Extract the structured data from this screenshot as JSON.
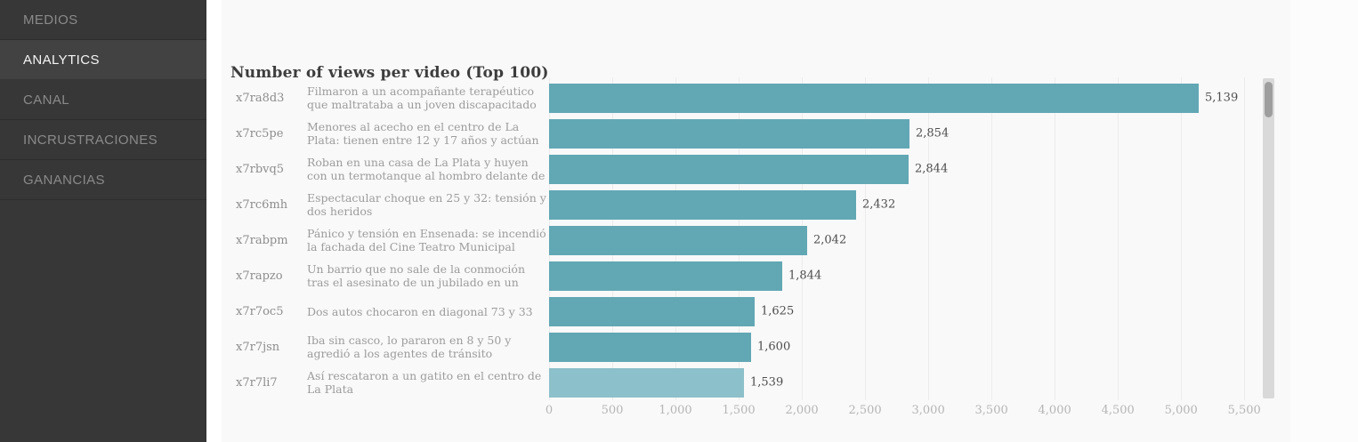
{
  "sidebar": {
    "items": [
      {
        "label": "MEDIOS",
        "active": false
      },
      {
        "label": "ANALYTICS",
        "active": true
      },
      {
        "label": "CANAL",
        "active": false
      },
      {
        "label": "INCRUSTRACIONES",
        "active": false
      },
      {
        "label": "GANANCIAS",
        "active": false
      }
    ]
  },
  "main": {
    "title": "Number of views per video (Top 100)"
  },
  "chart_data": {
    "type": "bar",
    "orientation": "horizontal",
    "title": "Number of views per video (Top 100)",
    "xlim": [
      0,
      5583
    ],
    "grid": true,
    "rows": [
      {
        "id": "x7ra8d3",
        "label": "Filmaron a un acompañante terapéutico que maltrataba a un joven discapacitado",
        "value": 5139,
        "value_label": "5,139",
        "highlight": false
      },
      {
        "id": "x7rc5pe",
        "label": "Menores al acecho en el centro de La Plata: tienen entre 12 y 17 años y actúan armados",
        "value": 2854,
        "value_label": "2,854",
        "highlight": false
      },
      {
        "id": "x7rbvq5",
        "label": "Roban en una casa de La Plata y huyen con un termotanque al hombro delante de los policías",
        "value": 2844,
        "value_label": "2,844",
        "highlight": false
      },
      {
        "id": "x7rc6mh",
        "label": "Espectacular choque en 25 y 32: tensión y dos heridos",
        "value": 2432,
        "value_label": "2,432",
        "highlight": false
      },
      {
        "id": "x7rabpm",
        "label": "Pánico y tensión en Ensenada: se incendió la fachada del Cine Teatro Municipal",
        "value": 2042,
        "value_label": "2,042",
        "highlight": false
      },
      {
        "id": "x7rapzo",
        "label": "Un barrio que no sale de la conmoción tras el asesinato de un jubilado en un asalto",
        "value": 1844,
        "value_label": "1,844",
        "highlight": false
      },
      {
        "id": "x7r7oc5",
        "label": "Dos autos chocaron en diagonal 73 y 33",
        "value": 1625,
        "value_label": "1,625",
        "highlight": false
      },
      {
        "id": "x7r7jsn",
        "label": "Iba sin casco, lo pararon en 8 y 50 y agredió a los agentes de tránsito",
        "value": 1600,
        "value_label": "1,600",
        "highlight": false
      },
      {
        "id": "x7r7li7",
        "label": "Así rescataron a un gatito en el centro de La Plata",
        "value": 1539,
        "value_label": "1,539",
        "highlight": true
      }
    ],
    "x_ticks": [
      {
        "value": 0,
        "label": "0"
      },
      {
        "value": 500,
        "label": "500"
      },
      {
        "value": 1000,
        "label": "1,000"
      },
      {
        "value": 1500,
        "label": "1,500"
      },
      {
        "value": 2000,
        "label": "2,000"
      },
      {
        "value": 2500,
        "label": "2,500"
      },
      {
        "value": 3000,
        "label": "3,000"
      },
      {
        "value": 3500,
        "label": "3,500"
      },
      {
        "value": 4000,
        "label": "4,000"
      },
      {
        "value": 4500,
        "label": "4,500"
      },
      {
        "value": 5000,
        "label": "5,000"
      },
      {
        "value": 5500,
        "label": "5,500"
      }
    ]
  },
  "colors": {
    "bar": "#62a7b4",
    "bar_highlight": "#8cc0ca",
    "sidebar_bg": "#373737",
    "sidebar_active_bg": "#424242",
    "sidebar_text": "#8a8a8a",
    "sidebar_active_text": "#f5f5f5",
    "panel_bg": "#f9f9f9"
  }
}
